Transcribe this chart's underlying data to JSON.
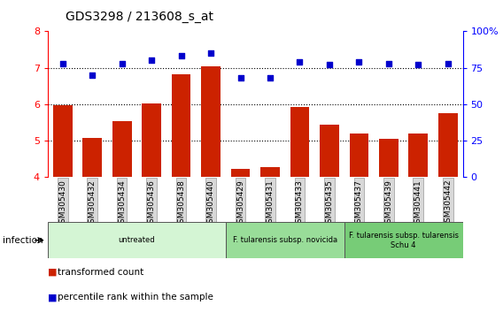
{
  "title": "GDS3298 / 213608_s_at",
  "samples": [
    "GSM305430",
    "GSM305432",
    "GSM305434",
    "GSM305436",
    "GSM305438",
    "GSM305440",
    "GSM305429",
    "GSM305431",
    "GSM305433",
    "GSM305435",
    "GSM305437",
    "GSM305439",
    "GSM305441",
    "GSM305442"
  ],
  "bar_values": [
    5.98,
    5.06,
    5.52,
    6.02,
    6.82,
    7.03,
    4.22,
    4.27,
    5.93,
    5.44,
    5.18,
    5.04,
    5.18,
    5.75
  ],
  "scatter_values": [
    78,
    70,
    78,
    80,
    83,
    85,
    68,
    68,
    79,
    77,
    79,
    78,
    77,
    78
  ],
  "bar_color": "#cc2200",
  "scatter_color": "#0000cc",
  "ylim_left": [
    4,
    8
  ],
  "ylim_right": [
    0,
    100
  ],
  "yticks_left": [
    4,
    5,
    6,
    7,
    8
  ],
  "yticks_right": [
    0,
    25,
    50,
    75,
    100
  ],
  "groups": [
    {
      "label": "untreated",
      "start": 0,
      "end": 6,
      "color": "#d4f5d4"
    },
    {
      "label": "F. tularensis subsp. novicida",
      "start": 6,
      "end": 10,
      "color": "#99dd99"
    },
    {
      "label": "F. tularensis subsp. tularensis\nSchu 4",
      "start": 10,
      "end": 14,
      "color": "#77cc77"
    }
  ],
  "legend_items": [
    {
      "label": "transformed count",
      "color": "#cc2200"
    },
    {
      "label": "percentile rank within the sample",
      "color": "#0000cc"
    }
  ],
  "infection_label": "infection",
  "dotted_grid_values": [
    5,
    6,
    7
  ],
  "tick_bg_color": "#d8d8d8",
  "tick_edge_color": "#999999"
}
